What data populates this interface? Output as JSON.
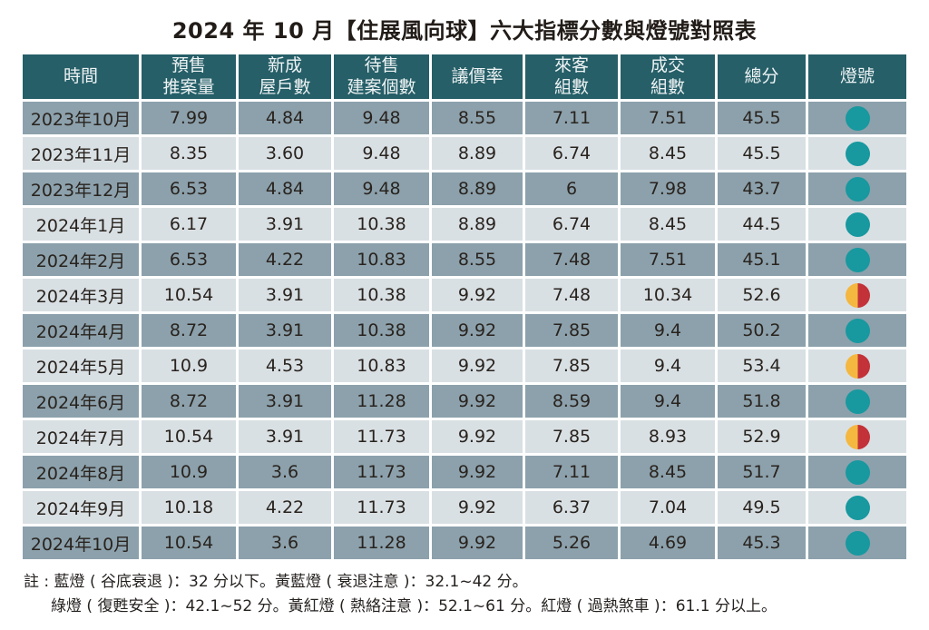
{
  "chart_data": {
    "type": "table",
    "title": "2024 年 10 月【住展風向球】六大指標分數與燈號對照表",
    "columns": [
      "時間",
      "預售\n推案量",
      "新成\n屋戶數",
      "待售\n建案個數",
      "議價率",
      "來客\n組數",
      "成交\n組數",
      "總分",
      "燈號"
    ],
    "rows": [
      {
        "cells": [
          "2023年10月",
          "7.99",
          "4.84",
          "9.48",
          "8.55",
          "7.11",
          "7.51",
          "45.5"
        ],
        "light": "green"
      },
      {
        "cells": [
          "2023年11月",
          "8.35",
          "3.60",
          "9.48",
          "8.89",
          "6.74",
          "8.45",
          "45.5"
        ],
        "light": "green"
      },
      {
        "cells": [
          "2023年12月",
          "6.53",
          "4.84",
          "9.48",
          "8.89",
          "6",
          "7.98",
          "43.7"
        ],
        "light": "green"
      },
      {
        "cells": [
          "2024年1月",
          "6.17",
          "3.91",
          "10.38",
          "8.89",
          "6.74",
          "8.45",
          "44.5"
        ],
        "light": "green"
      },
      {
        "cells": [
          "2024年2月",
          "6.53",
          "4.22",
          "10.83",
          "8.55",
          "7.48",
          "7.51",
          "45.1"
        ],
        "light": "green"
      },
      {
        "cells": [
          "2024年3月",
          "10.54",
          "3.91",
          "10.38",
          "9.92",
          "7.48",
          "10.34",
          "52.6"
        ],
        "light": "yellow-red"
      },
      {
        "cells": [
          "2024年4月",
          "8.72",
          "3.91",
          "10.38",
          "9.92",
          "7.85",
          "9.4",
          "50.2"
        ],
        "light": "green"
      },
      {
        "cells": [
          "2024年5月",
          "10.9",
          "4.53",
          "10.83",
          "9.92",
          "7.85",
          "9.4",
          "53.4"
        ],
        "light": "yellow-red"
      },
      {
        "cells": [
          "2024年6月",
          "8.72",
          "3.91",
          "11.28",
          "9.92",
          "8.59",
          "9.4",
          "51.8"
        ],
        "light": "green"
      },
      {
        "cells": [
          "2024年7月",
          "10.54",
          "3.91",
          "11.73",
          "9.92",
          "7.85",
          "8.93",
          "52.9"
        ],
        "light": "yellow-red"
      },
      {
        "cells": [
          "2024年8月",
          "10.9",
          "3.6",
          "11.73",
          "9.92",
          "7.11",
          "8.45",
          "51.7"
        ],
        "light": "green"
      },
      {
        "cells": [
          "2024年9月",
          "10.18",
          "4.22",
          "11.73",
          "9.92",
          "6.37",
          "7.04",
          "49.5"
        ],
        "light": "green"
      },
      {
        "cells": [
          "2024年10月",
          "10.54",
          "3.6",
          "11.28",
          "9.92",
          "5.26",
          "4.69",
          "45.3"
        ],
        "light": "green"
      }
    ],
    "light_legend": {
      "green": "綠燈",
      "yellow-red": "黃紅燈"
    }
  },
  "notes": {
    "line1": "註 : 藍燈 ( 谷底衰退 )：32 分以下。黃藍燈 ( 衰退注意 )：32.1~42 分。",
    "line2": "綠燈 ( 復甦安全 )：42.1~52 分。黃紅燈 ( 熱絡注意 )：52.1~61 分。紅燈 ( 過熱煞車 )：61.1 分以上。"
  },
  "colors": {
    "header_bg": "#265f68",
    "header_text": "#eef3f4",
    "row_dark": "#8ca1ac",
    "row_light": "#d9e0e4",
    "cell_text": "#29231e",
    "light_green": "#18989f",
    "light_yellow": "#f4b73f",
    "light_red": "#c23238"
  }
}
